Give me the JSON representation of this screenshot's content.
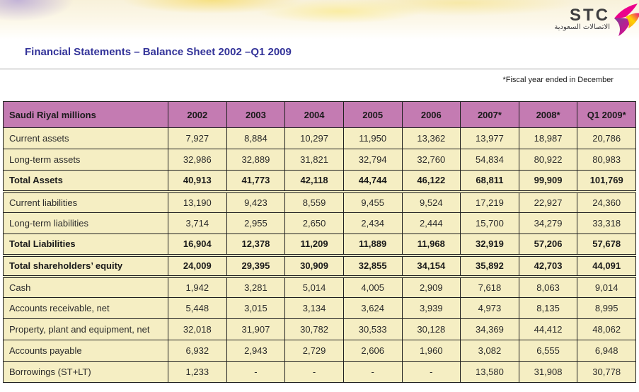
{
  "page": {
    "title": "Financial Statements – Balance Sheet 2002 –Q1 2009",
    "footnote": "*Fiscal year ended in December"
  },
  "logo": {
    "name": "STC",
    "arabic": "الاتصالات السعودية"
  },
  "colors": {
    "header_bg": "#C47BB2",
    "cell_bg": "#F5EEC3",
    "title_text": "#333399",
    "border": "#1F1F1F",
    "swoosh_purple": "#7F3F98",
    "swoosh_magenta": "#EC008C",
    "swoosh_yellow": "#FFD200",
    "swoosh_orange": "#F7941E"
  },
  "table": {
    "columns": [
      "Saudi Riyal millions",
      "2002",
      "2003",
      "2004",
      "2005",
      "2006",
      "2007*",
      "2008*",
      "Q1 2009*"
    ],
    "rows": [
      {
        "label": "Current assets",
        "values": [
          "7,927",
          "8,884",
          "10,297",
          "11,950",
          "13,362",
          "13,977",
          "18,987",
          "20,786"
        ],
        "bold": false,
        "section_start": false
      },
      {
        "label": "Long-term assets",
        "values": [
          "32,986",
          "32,889",
          "31,821",
          "32,794",
          "32,760",
          "54,834",
          "80,922",
          "80,983"
        ],
        "bold": false,
        "section_start": false
      },
      {
        "label": "Total Assets",
        "values": [
          "40,913",
          "41,773",
          "42,118",
          "44,744",
          "46,122",
          "68,811",
          "99,909",
          "101,769"
        ],
        "bold": true,
        "section_start": false
      },
      {
        "label": "Current liabilities",
        "values": [
          "13,190",
          "9,423",
          "8,559",
          "9,455",
          "9,524",
          "17,219",
          "22,927",
          "24,360"
        ],
        "bold": false,
        "section_start": true
      },
      {
        "label": "Long-term liabilities",
        "values": [
          "3,714",
          "2,955",
          "2,650",
          "2,434",
          "2,444",
          "15,700",
          "34,279",
          "33,318"
        ],
        "bold": false,
        "section_start": false
      },
      {
        "label": "Total Liabilities",
        "values": [
          "16,904",
          "12,378",
          "11,209",
          "11,889",
          "11,968",
          "32,919",
          "57,206",
          "57,678"
        ],
        "bold": true,
        "section_start": false
      },
      {
        "label": "Total shareholders’ equity",
        "values": [
          "24,009",
          "29,395",
          "30,909",
          "32,855",
          "34,154",
          "35,892",
          "42,703",
          "44,091"
        ],
        "bold": true,
        "section_start": true
      },
      {
        "label": "Cash",
        "values": [
          "1,942",
          "3,281",
          "5,014",
          "4,005",
          "2,909",
          "7,618",
          "8,063",
          "9,014"
        ],
        "bold": false,
        "section_start": true
      },
      {
        "label": "Accounts receivable, net",
        "values": [
          "5,448",
          "3,015",
          "3,134",
          "3,624",
          "3,939",
          "4,973",
          "8,135",
          "8,995"
        ],
        "bold": false,
        "section_start": false
      },
      {
        "label": "Property, plant and equipment, net",
        "values": [
          "32,018",
          "31,907",
          "30,782",
          "30,533",
          "30,128",
          "34,369",
          "44,412",
          "48,062"
        ],
        "bold": false,
        "section_start": false
      },
      {
        "label": "Accounts payable",
        "values": [
          "6,932",
          "2,943",
          "2,729",
          "2,606",
          "1,960",
          "3,082",
          "6,555",
          "6,948"
        ],
        "bold": false,
        "section_start": false
      },
      {
        "label": "Borrowings (ST+LT)",
        "values": [
          "1,233",
          "-",
          "-",
          "-",
          "-",
          "13,580",
          "31,908",
          "30,778"
        ],
        "bold": false,
        "section_start": false
      }
    ]
  }
}
